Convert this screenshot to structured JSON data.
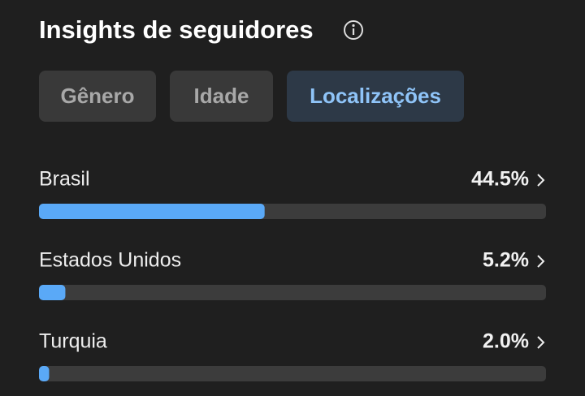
{
  "header": {
    "title": "Insights de seguidores"
  },
  "tabs": [
    {
      "label": "Gênero",
      "selected": false
    },
    {
      "label": "Idade",
      "selected": false
    },
    {
      "label": "Localizações",
      "selected": true
    }
  ],
  "chart_data": {
    "type": "bar",
    "orientation": "horizontal",
    "categories": [
      "Brasil",
      "Estados Unidos",
      "Turquia"
    ],
    "values": [
      44.5,
      5.2,
      2.0
    ],
    "value_labels": [
      "44.5%",
      "5.2%",
      "2.0%"
    ],
    "color": "#5aa9f7",
    "xlim": [
      0,
      100
    ]
  }
}
